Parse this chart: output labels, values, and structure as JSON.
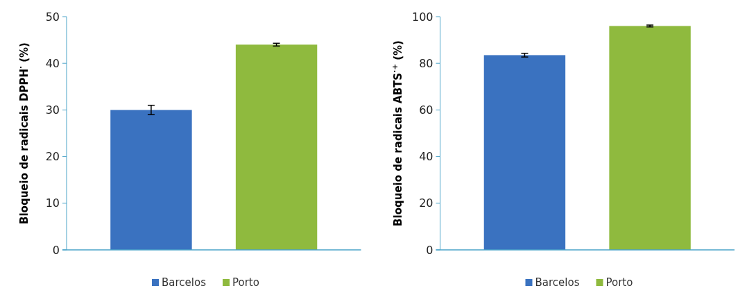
{
  "chart_data": [
    {
      "type": "bar",
      "ylabel": "Bloqueio de radicais DPPH$^{·}$ (%)",
      "categories": [
        null,
        null
      ],
      "series": [
        {
          "name": "Barcelos",
          "color": "#3a72c0",
          "values": [
            30,
            null
          ],
          "errors": [
            1,
            null
          ]
        },
        {
          "name": "Porto",
          "color": "#8fba3e",
          "values": [
            null,
            44
          ],
          "errors": [
            null,
            0.3
          ]
        }
      ],
      "ylim": [
        0,
        50
      ],
      "yticks": [
        0,
        10,
        20,
        30,
        40,
        50
      ],
      "legend": "bottom",
      "grid": false
    },
    {
      "type": "bar",
      "ylabel": "Bloqueio de radicais ABTS$^{·+}$ (%)",
      "categories": [
        null,
        null
      ],
      "series": [
        {
          "name": "Barcelos",
          "color": "#3a72c0",
          "values": [
            83.5,
            null
          ],
          "errors": [
            0.8,
            null
          ]
        },
        {
          "name": "Porto",
          "color": "#8fba3e",
          "values": [
            null,
            96
          ],
          "errors": [
            null,
            0.4
          ]
        }
      ],
      "ylim": [
        0,
        100
      ],
      "yticks": [
        0,
        20,
        40,
        60,
        80,
        100
      ],
      "legend": "bottom",
      "grid": false
    }
  ]
}
